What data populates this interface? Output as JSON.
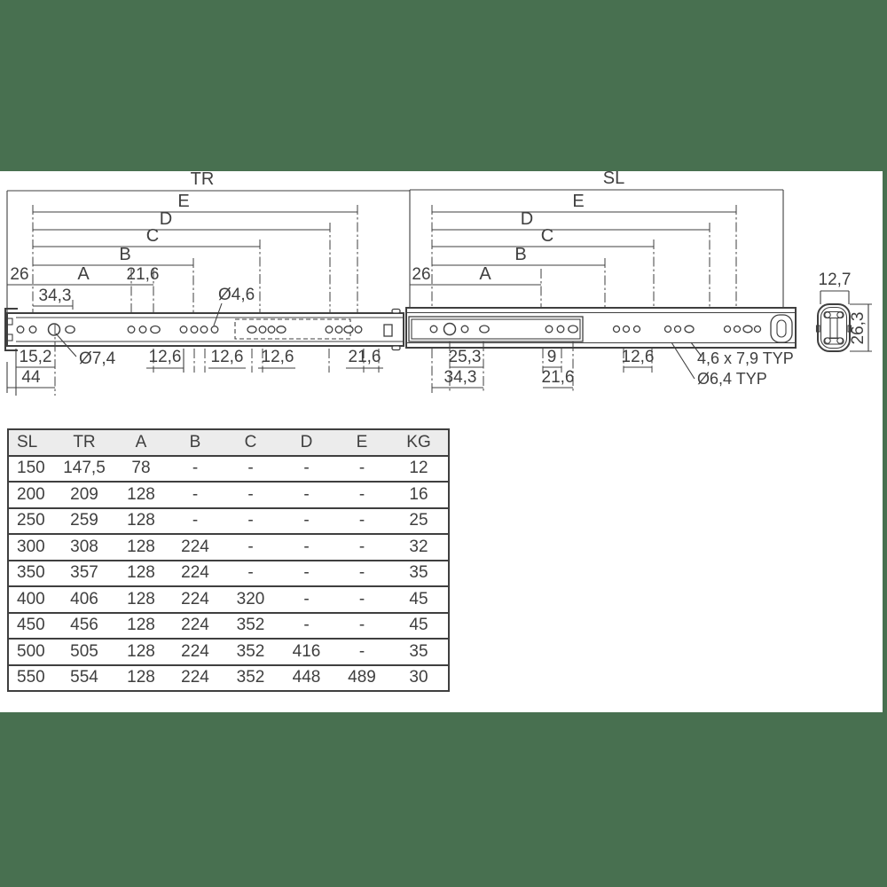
{
  "colors": {
    "background_green": "#487050",
    "ink": "#3F3F3F",
    "sheet": "#FFFFFF",
    "table_header_bg": "#ECECEC"
  },
  "diagram": {
    "tr_view": {
      "total_label": "TR",
      "spans": {
        "e": "E",
        "d": "D",
        "c": "C",
        "b": "B",
        "a": "A"
      },
      "dims": {
        "offset_26": "26",
        "pitch_21_6": "21,6",
        "first_34_3": "34,3",
        "hole_dia": "Ø4,6",
        "d_15_2": "15,2",
        "d_hole_7_4": "Ø7,4",
        "d_12_6_a": "12,6",
        "d_12_6_b": "12,6",
        "d_12_6_c": "12,6",
        "d_21_6": "21,6",
        "d_44": "44"
      }
    },
    "sl_view": {
      "total_label": "SL",
      "spans": {
        "e": "E",
        "d": "D",
        "c": "C",
        "b": "B",
        "a": "A"
      },
      "dims": {
        "offset_26": "26",
        "d_25_3": "25,3",
        "d_34_3": "34,3",
        "d_9": "9",
        "d_21_6": "21,6",
        "d_12_6": "12,6",
        "slot_typ": "4,6 x 7,9 TYP",
        "hole_typ": "Ø6,4 TYP"
      }
    },
    "section_view": {
      "width": "12,7",
      "height": "26,3"
    }
  },
  "table": {
    "headers": [
      "SL",
      "TR",
      "A",
      "B",
      "C",
      "D",
      "E",
      "KG"
    ],
    "rows": [
      [
        "150",
        "147,5",
        "78",
        "-",
        "-",
        "-",
        "-",
        "12"
      ],
      [
        "200",
        "209",
        "128",
        "-",
        "-",
        "-",
        "-",
        "16"
      ],
      [
        "250",
        "259",
        "128",
        "-",
        "-",
        "-",
        "-",
        "25"
      ],
      [
        "300",
        "308",
        "128",
        "224",
        "-",
        "-",
        "-",
        "32"
      ],
      [
        "350",
        "357",
        "128",
        "224",
        "-",
        "-",
        "-",
        "35"
      ],
      [
        "400",
        "406",
        "128",
        "224",
        "320",
        "-",
        "-",
        "45"
      ],
      [
        "450",
        "456",
        "128",
        "224",
        "352",
        "-",
        "-",
        "45"
      ],
      [
        "500",
        "505",
        "128",
        "224",
        "352",
        "416",
        "-",
        "35"
      ],
      [
        "550",
        "554",
        "128",
        "224",
        "352",
        "448",
        "489",
        "30"
      ]
    ]
  }
}
